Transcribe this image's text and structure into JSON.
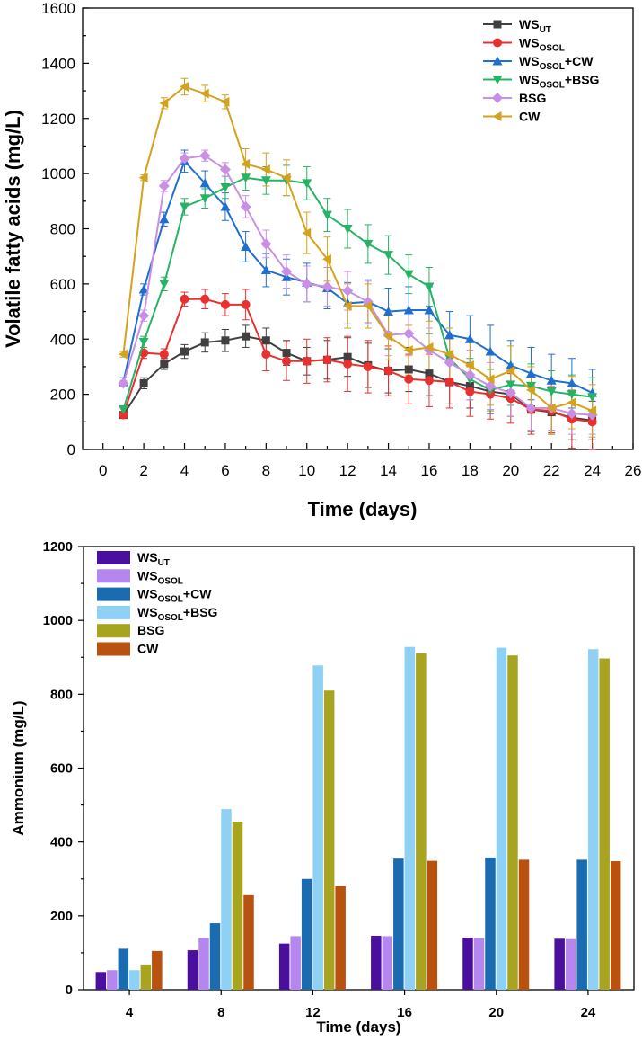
{
  "chart_data": [
    {
      "type": "line",
      "xlabel": "Time (days)",
      "ylabel": "Volatile fatty acids (mg/L)",
      "xlim": [
        -1,
        26
      ],
      "ylim": [
        0,
        1600
      ],
      "xticks": [
        0,
        2,
        4,
        6,
        8,
        10,
        12,
        14,
        16,
        18,
        20,
        22,
        24,
        26
      ],
      "yticks": [
        0,
        200,
        400,
        600,
        800,
        1000,
        1200,
        1400,
        1600
      ],
      "legend_position": "top-right",
      "x": [
        1,
        2,
        3,
        4,
        5,
        6,
        7,
        8,
        9,
        10,
        11,
        12,
        13,
        14,
        15,
        16,
        17,
        18,
        19,
        20,
        21,
        22,
        23,
        24
      ],
      "series": [
        {
          "name": "WS",
          "sub": "UT",
          "suffix": "",
          "color": "#404040",
          "marker": "square",
          "values": [
            125,
            240,
            310,
            355,
            388,
            395,
            410,
            395,
            350,
            320,
            325,
            335,
            305,
            285,
            290,
            275,
            245,
            230,
            210,
            200,
            145,
            135,
            115,
            105
          ],
          "errors": [
            12,
            20,
            20,
            25,
            35,
            40,
            40,
            45,
            45,
            50,
            70,
            70,
            80,
            80,
            80,
            80,
            80,
            80,
            80,
            80,
            80,
            80,
            80,
            70
          ]
        },
        {
          "name": "WS",
          "sub": "OSOL",
          "suffix": "",
          "color": "#e8312f",
          "marker": "circle",
          "values": [
            125,
            350,
            345,
            545,
            545,
            525,
            525,
            345,
            320,
            320,
            325,
            310,
            300,
            285,
            255,
            250,
            245,
            210,
            200,
            185,
            145,
            140,
            110,
            100
          ],
          "errors": [
            10,
            20,
            20,
            25,
            35,
            40,
            55,
            60,
            70,
            80,
            80,
            100,
            95,
            90,
            90,
            95,
            95,
            90,
            90,
            90,
            90,
            80,
            105,
            100
          ]
        },
        {
          "name": "WS",
          "sub": "OSOL",
          "suffix": "+CW",
          "color": "#1f6fce",
          "marker": "triangle-up",
          "values": [
            245,
            580,
            835,
            1045,
            965,
            880,
            735,
            650,
            625,
            605,
            585,
            530,
            535,
            500,
            505,
            505,
            415,
            400,
            355,
            305,
            275,
            250,
            240,
            205
          ],
          "errors": [
            15,
            20,
            25,
            40,
            45,
            50,
            55,
            60,
            65,
            70,
            75,
            75,
            80,
            85,
            85,
            85,
            85,
            85,
            95,
            90,
            95,
            95,
            90,
            85
          ]
        },
        {
          "name": "WS",
          "sub": "OSOL",
          "suffix": "+BSG",
          "color": "#27b364",
          "marker": "triangle-down",
          "values": [
            145,
            390,
            600,
            880,
            910,
            950,
            985,
            975,
            975,
            965,
            850,
            800,
            745,
            705,
            635,
            590,
            330,
            255,
            215,
            235,
            230,
            210,
            200,
            190
          ],
          "errors": [
            10,
            20,
            25,
            30,
            35,
            40,
            45,
            50,
            55,
            60,
            60,
            70,
            70,
            70,
            70,
            70,
            75,
            75,
            75,
            75,
            80,
            75,
            70,
            70
          ]
        },
        {
          "name": "BSG",
          "sub": "",
          "suffix": "",
          "color": "#c98ee6",
          "marker": "diamond",
          "values": [
            240,
            485,
            955,
            1055,
            1065,
            1015,
            880,
            745,
            645,
            600,
            590,
            575,
            535,
            415,
            420,
            360,
            315,
            270,
            230,
            205,
            150,
            150,
            130,
            125
          ],
          "errors": [
            10,
            20,
            20,
            20,
            20,
            25,
            40,
            50,
            60,
            65,
            70,
            70,
            75,
            75,
            80,
            80,
            85,
            90,
            85,
            85,
            80,
            80,
            75,
            70
          ]
        },
        {
          "name": "CW",
          "sub": "",
          "suffix": "",
          "color": "#d4a21c",
          "marker": "triangle-left",
          "values": [
            345,
            985,
            1255,
            1315,
            1290,
            1260,
            1035,
            1015,
            985,
            785,
            690,
            520,
            520,
            410,
            360,
            370,
            345,
            305,
            255,
            285,
            215,
            150,
            170,
            140
          ],
          "errors": [
            10,
            10,
            20,
            30,
            30,
            25,
            55,
            60,
            65,
            75,
            80,
            80,
            80,
            85,
            90,
            95,
            95,
            95,
            95,
            90,
            85,
            95,
            95,
            95
          ]
        }
      ]
    },
    {
      "type": "bar",
      "xlabel": "Time (days)",
      "ylabel": "Ammonium (mg/L)",
      "ylim": [
        0,
        1200
      ],
      "yticks": [
        0,
        200,
        400,
        600,
        800,
        1000,
        1200
      ],
      "legend_position": "top-left",
      "categories": [
        "4",
        "8",
        "12",
        "16",
        "20",
        "24"
      ],
      "series": [
        {
          "name": "WS",
          "sub": "UT",
          "suffix": "",
          "color": "#4a0f9e",
          "values": [
            48,
            107,
            125,
            146,
            141,
            138
          ]
        },
        {
          "name": "WS",
          "sub": "OSOL",
          "suffix": "",
          "color": "#b586f0",
          "values": [
            53,
            140,
            145,
            145,
            140,
            137
          ]
        },
        {
          "name": "WS",
          "sub": "OSOL",
          "suffix": "+CW",
          "color": "#1a6bb0",
          "values": [
            111,
            180,
            300,
            355,
            358,
            352
          ]
        },
        {
          "name": "WS",
          "sub": "OSOL",
          "suffix": "+BSG",
          "color": "#8fd0f5",
          "values": [
            53,
            489,
            878,
            928,
            926,
            922
          ]
        },
        {
          "name": "BSG",
          "sub": "",
          "suffix": "",
          "color": "#a8a420",
          "values": [
            66,
            455,
            810,
            911,
            905,
            897
          ]
        },
        {
          "name": "CW",
          "sub": "",
          "suffix": "",
          "color": "#b8520e",
          "values": [
            105,
            256,
            280,
            349,
            352,
            348
          ]
        }
      ]
    }
  ]
}
